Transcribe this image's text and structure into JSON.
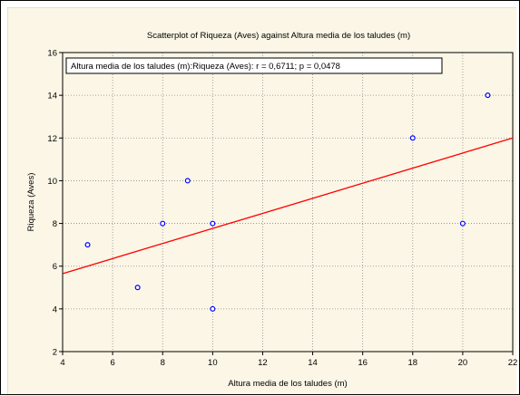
{
  "chart_data": {
    "type": "scatter",
    "title": "Scatterplot of Riqueza (Aves) against Altura media de los taludes (m)",
    "xlabel": "Altura media de los taludes (m)",
    "ylabel": "Riqueza (Aves)",
    "xlim": [
      4,
      22
    ],
    "ylim": [
      2,
      16
    ],
    "xticks": [
      4,
      6,
      8,
      10,
      12,
      14,
      16,
      18,
      20,
      22
    ],
    "yticks": [
      2,
      4,
      6,
      8,
      10,
      12,
      14,
      16
    ],
    "grid": true,
    "legend_text": "Altura media de los taludes (m):Riqueza (Aves):   r = 0,6711; p = 0,0478",
    "legend_position": "top-left",
    "points": [
      {
        "x": 5,
        "y": 7
      },
      {
        "x": 7,
        "y": 5
      },
      {
        "x": 8,
        "y": 8
      },
      {
        "x": 9,
        "y": 10
      },
      {
        "x": 10,
        "y": 8
      },
      {
        "x": 10,
        "y": 4
      },
      {
        "x": 18,
        "y": 12
      },
      {
        "x": 20,
        "y": 8
      },
      {
        "x": 21,
        "y": 14
      }
    ],
    "fit_line": {
      "x": [
        4,
        22
      ],
      "y": [
        5.65,
        12.0
      ]
    },
    "colors": {
      "points": "#0000ff",
      "fit_line": "#ff0000",
      "grid": "#8c8c8c",
      "background": "#fbf6e6"
    }
  }
}
